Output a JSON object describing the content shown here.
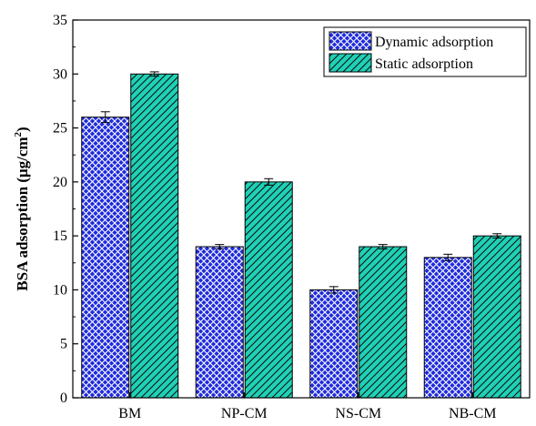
{
  "chart_data": {
    "type": "bar",
    "categories": [
      "BM",
      "NP-CM",
      "NS-CM",
      "NB-CM"
    ],
    "series": [
      {
        "name": "Dynamic adsorption",
        "values": [
          26,
          14,
          10,
          13
        ],
        "errors": [
          0.5,
          0.2,
          0.3,
          0.3
        ],
        "color": "#1f2bdc",
        "pattern": "crosshatch"
      },
      {
        "name": "Static adsorption",
        "values": [
          30,
          20,
          14,
          15
        ],
        "errors": [
          0.2,
          0.3,
          0.2,
          0.2
        ],
        "color": "#1fd1b6",
        "pattern": "diagonal"
      }
    ],
    "ylabel_main": "BSA adsorption (μg/cm",
    "ylabel_sup": "2",
    "ylabel_close": ")",
    "xlabel": "",
    "ylim": [
      0,
      35
    ],
    "yticks": [
      0,
      5,
      10,
      15,
      20,
      25,
      30,
      35
    ],
    "legend_position": "top-right",
    "grid": false
  }
}
